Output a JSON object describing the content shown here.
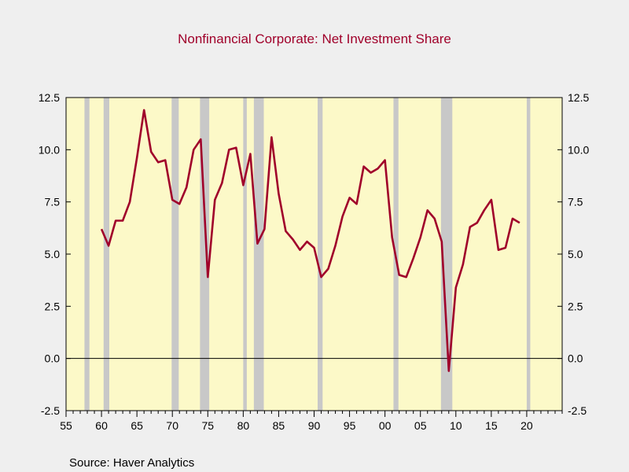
{
  "chart_data": {
    "type": "line",
    "title": "Nonfinancial Corporate: Net Investment Share",
    "source": "Source:  Haver Analytics",
    "xlabel": "",
    "ylabel": "",
    "xlim": [
      1955,
      2025
    ],
    "ylim": [
      -2.5,
      12.5
    ],
    "x_ticks": [
      1955,
      1960,
      1965,
      1970,
      1975,
      1980,
      1985,
      1990,
      1995,
      2000,
      2005,
      2010,
      2015,
      2020
    ],
    "x_tick_labels": [
      "55",
      "60",
      "65",
      "70",
      "75",
      "80",
      "85",
      "90",
      "95",
      "00",
      "05",
      "10",
      "15",
      "20"
    ],
    "y_ticks": [
      -2.5,
      0.0,
      2.5,
      5.0,
      7.5,
      10.0,
      12.5
    ],
    "y_tick_labels": [
      "-2.5",
      "0.0",
      "2.5",
      "5.0",
      "7.5",
      "10.0",
      "12.5"
    ],
    "zero_line": true,
    "colors": {
      "line": "#a0002a",
      "plot_background": "#fcf9c8",
      "recession_band": "#c8c8c8",
      "page_background": "#efefef"
    },
    "recessions": [
      [
        1957.6,
        1958.3
      ],
      [
        1960.3,
        1961.1
      ],
      [
        1969.9,
        1970.9
      ],
      [
        1973.9,
        1975.2
      ],
      [
        1980.0,
        1980.5
      ],
      [
        1981.5,
        1982.9
      ],
      [
        1990.5,
        1991.2
      ],
      [
        2001.2,
        2001.9
      ],
      [
        2007.9,
        2009.5
      ],
      [
        2020.0,
        2020.5
      ]
    ],
    "series": [
      {
        "x": [
          1960,
          1961,
          1962,
          1963,
          1964,
          1965,
          1966,
          1967,
          1968,
          1969,
          1970,
          1971,
          1972,
          1973,
          1974,
          1975,
          1976,
          1977,
          1978,
          1979,
          1980,
          1981,
          1982,
          1983,
          1984,
          1985,
          1986,
          1987,
          1988,
          1989,
          1990,
          1991,
          1992,
          1993,
          1994,
          1995,
          1996,
          1997,
          1998,
          1999,
          2000,
          2001,
          2002,
          2003,
          2004,
          2005,
          2006,
          2007,
          2008,
          2009,
          2010,
          2011,
          2012,
          2013,
          2014,
          2015,
          2016,
          2017,
          2018,
          2019
        ],
        "values": [
          6.2,
          5.4,
          6.6,
          6.6,
          7.5,
          9.6,
          11.9,
          9.9,
          9.4,
          9.5,
          7.6,
          7.4,
          8.2,
          10.0,
          10.5,
          3.9,
          7.6,
          8.4,
          10.0,
          10.1,
          8.3,
          9.8,
          5.5,
          6.2,
          10.6,
          7.9,
          6.1,
          5.7,
          5.2,
          5.6,
          5.3,
          3.9,
          4.3,
          5.4,
          6.8,
          7.7,
          7.4,
          9.2,
          8.9,
          9.1,
          9.5,
          5.8,
          4.0,
          3.9,
          4.8,
          5.8,
          7.1,
          6.7,
          5.6,
          -0.6,
          3.4,
          4.5,
          6.3,
          6.5,
          7.1,
          7.6,
          5.2,
          5.3,
          6.7,
          6.5
        ]
      }
    ]
  }
}
